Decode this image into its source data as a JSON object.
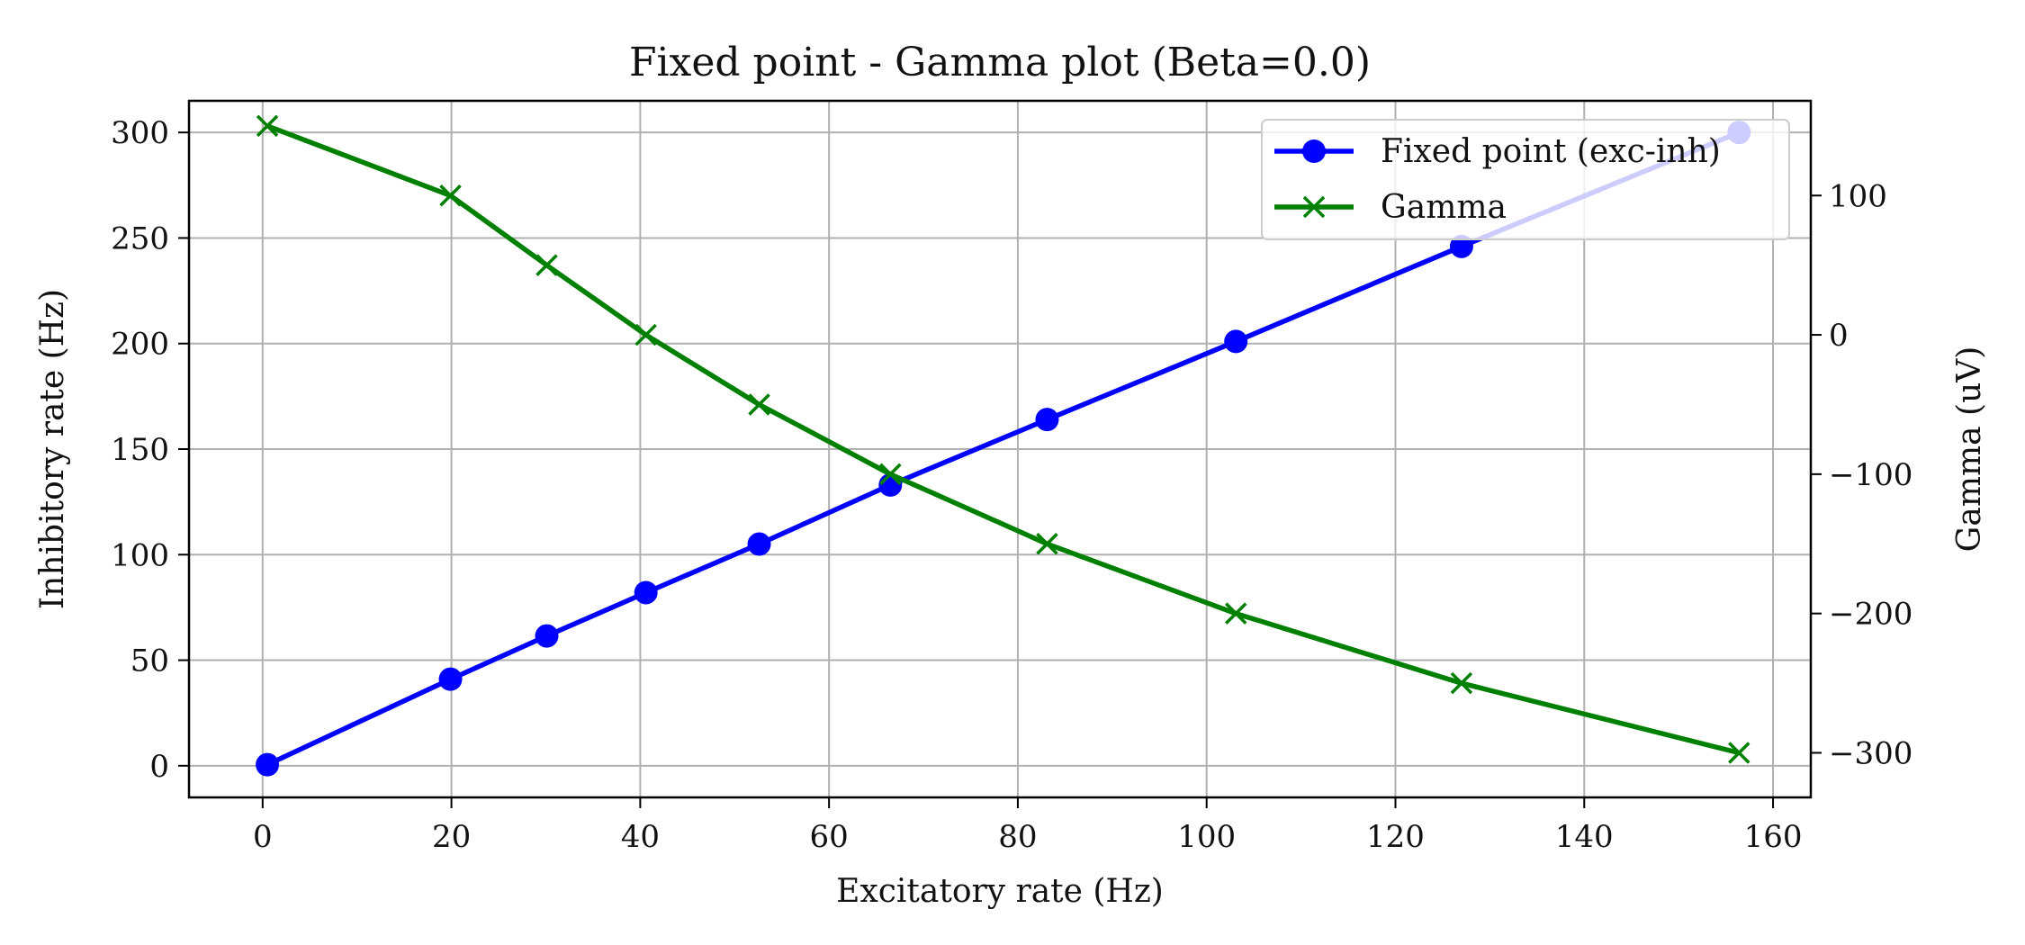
{
  "chart_data": {
    "type": "line",
    "title": "Fixed point - Gamma plot (Beta=0.0)",
    "xlabel": "Excitatory rate (Hz)",
    "ylabel": "Inhibitory rate (Hz)",
    "y2label": "Gamma (uV)",
    "xlim": [
      -7.8,
      164
    ],
    "ylim": [
      -15,
      315
    ],
    "y2lim": [
      -332,
      168
    ],
    "xticks": [
      "0",
      "20",
      "40",
      "60",
      "80",
      "100",
      "120",
      "140",
      "160"
    ],
    "yticks": [
      "0",
      "50",
      "100",
      "150",
      "200",
      "250",
      "300"
    ],
    "y2ticks": [
      "100",
      "0",
      "−100",
      "−200",
      "−300"
    ],
    "grid": true,
    "legend_position": "top-right",
    "series": [
      {
        "name": "Fixed point (exc-inh)",
        "axis": "left",
        "color": "#0000ff",
        "marker": "circle",
        "x": [
          0.5,
          19.9,
          30.1,
          40.6,
          52.6,
          66.5,
          83.1,
          103.1,
          127.0,
          156.4
        ],
        "y": [
          0.5,
          41,
          61.5,
          82,
          105,
          133,
          164,
          201,
          246,
          300
        ]
      },
      {
        "name": "Gamma",
        "axis": "right",
        "color": "#008000",
        "marker": "x",
        "x": [
          0.5,
          19.9,
          30.1,
          40.6,
          52.6,
          66.5,
          83.1,
          103.1,
          127.0,
          156.4
        ],
        "y": [
          150,
          100,
          50,
          0,
          -50,
          -100,
          -150,
          -200,
          -250,
          -300
        ]
      }
    ]
  }
}
